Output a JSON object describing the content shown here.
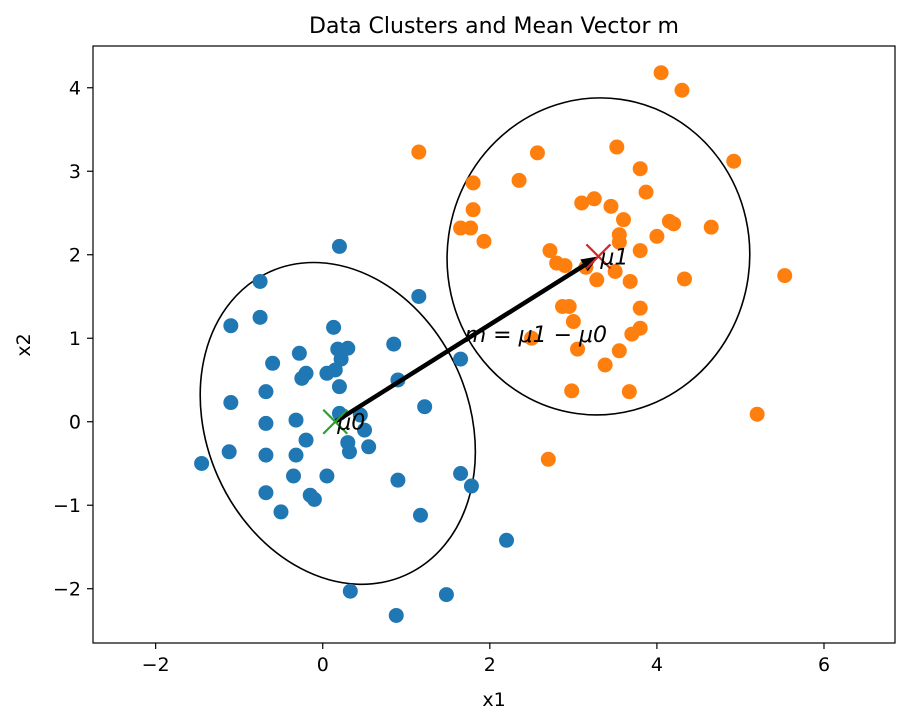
{
  "chart_data": {
    "type": "scatter",
    "title": "Data Clusters and Mean Vector m",
    "xlabel": "x1",
    "ylabel": "x2",
    "xlim": [
      -2.75,
      6.85
    ],
    "ylim": [
      -2.65,
      4.5
    ],
    "xticks": [
      -2,
      0,
      2,
      4,
      6
    ],
    "yticks": [
      -2,
      -1,
      0,
      1,
      2,
      3,
      4
    ],
    "xtick_labels": [
      "−2",
      "0",
      "2",
      "4",
      "6"
    ],
    "ytick_labels": [
      "−2",
      "−1",
      "0",
      "1",
      "2",
      "3",
      "4"
    ],
    "grid": false,
    "series": [
      {
        "color": "#1f77b4",
        "points": [
          [
            0.2,
            2.1
          ],
          [
            1.15,
            1.5
          ],
          [
            -0.75,
            1.68
          ],
          [
            -0.75,
            1.25
          ],
          [
            -1.1,
            1.15
          ],
          [
            0.13,
            1.13
          ],
          [
            0.18,
            0.87
          ],
          [
            0.3,
            0.88
          ],
          [
            0.85,
            0.93
          ],
          [
            0.22,
            0.75
          ],
          [
            -0.6,
            0.7
          ],
          [
            -0.28,
            0.82
          ],
          [
            -0.2,
            0.58
          ],
          [
            -0.25,
            0.52
          ],
          [
            0.05,
            0.58
          ],
          [
            0.15,
            0.62
          ],
          [
            0.9,
            0.5
          ],
          [
            1.65,
            0.75
          ],
          [
            0.2,
            0.42
          ],
          [
            -0.68,
            0.36
          ],
          [
            -1.1,
            0.23
          ],
          [
            1.22,
            0.18
          ],
          [
            0.2,
            0.1
          ],
          [
            0.45,
            0.08
          ],
          [
            -0.32,
            0.02
          ],
          [
            -0.68,
            -0.02
          ],
          [
            0.5,
            -0.1
          ],
          [
            -0.2,
            -0.22
          ],
          [
            0.3,
            -0.25
          ],
          [
            0.55,
            -0.3
          ],
          [
            0.32,
            -0.36
          ],
          [
            -1.12,
            -0.36
          ],
          [
            -0.32,
            -0.4
          ],
          [
            -0.68,
            -0.4
          ],
          [
            -1.45,
            -0.5
          ],
          [
            -0.35,
            -0.65
          ],
          [
            0.05,
            -0.65
          ],
          [
            1.65,
            -0.62
          ],
          [
            0.9,
            -0.7
          ],
          [
            1.78,
            -0.77
          ],
          [
            -0.68,
            -0.85
          ],
          [
            -0.15,
            -0.88
          ],
          [
            -0.1,
            -0.93
          ],
          [
            -0.5,
            -1.08
          ],
          [
            1.17,
            -1.12
          ],
          [
            2.2,
            -1.42
          ],
          [
            0.33,
            -2.03
          ],
          [
            1.48,
            -2.07
          ],
          [
            0.88,
            -2.32
          ]
        ]
      },
      {
        "color": "#ff7f0e",
        "points": [
          [
            4.05,
            4.18
          ],
          [
            4.3,
            3.97
          ],
          [
            1.15,
            3.23
          ],
          [
            2.57,
            3.22
          ],
          [
            3.52,
            3.29
          ],
          [
            4.92,
            3.12
          ],
          [
            3.8,
            3.03
          ],
          [
            1.8,
            2.86
          ],
          [
            2.35,
            2.89
          ],
          [
            3.87,
            2.75
          ],
          [
            3.25,
            2.67
          ],
          [
            3.1,
            2.62
          ],
          [
            3.45,
            2.58
          ],
          [
            1.8,
            2.54
          ],
          [
            3.6,
            2.42
          ],
          [
            4.15,
            2.4
          ],
          [
            4.2,
            2.37
          ],
          [
            1.65,
            2.32
          ],
          [
            1.77,
            2.32
          ],
          [
            4.65,
            2.33
          ],
          [
            3.55,
            2.24
          ],
          [
            4.0,
            2.22
          ],
          [
            1.93,
            2.16
          ],
          [
            3.55,
            2.15
          ],
          [
            2.72,
            2.05
          ],
          [
            3.8,
            2.05
          ],
          [
            2.8,
            1.9
          ],
          [
            2.9,
            1.87
          ],
          [
            3.15,
            1.85
          ],
          [
            3.5,
            1.8
          ],
          [
            5.53,
            1.75
          ],
          [
            3.28,
            1.7
          ],
          [
            3.68,
            1.68
          ],
          [
            4.33,
            1.71
          ],
          [
            2.87,
            1.38
          ],
          [
            2.95,
            1.38
          ],
          [
            3.8,
            1.36
          ],
          [
            3.0,
            1.2
          ],
          [
            3.8,
            1.12
          ],
          [
            3.7,
            1.05
          ],
          [
            2.5,
            1.0
          ],
          [
            3.05,
            0.87
          ],
          [
            3.55,
            0.85
          ],
          [
            3.38,
            0.68
          ],
          [
            2.98,
            0.37
          ],
          [
            3.67,
            0.36
          ],
          [
            5.2,
            0.09
          ],
          [
            2.7,
            -0.45
          ]
        ]
      }
    ],
    "ellipses": [
      {
        "cx": 0.18,
        "cy": -0.02,
        "rx": 1.57,
        "ry": 1.99,
        "angle": 24,
        "color": "#000000"
      },
      {
        "cx": 3.3,
        "cy": 1.98,
        "rx": 1.81,
        "ry": 1.9,
        "angle": -8,
        "color": "#000000"
      }
    ],
    "means": [
      {
        "label": "μ0",
        "x": 0.15,
        "y": 0.0,
        "color": "#2ca02c"
      },
      {
        "label": "μ1",
        "x": 3.3,
        "y": 1.98,
        "color": "#d62728"
      }
    ],
    "arrow": {
      "from": [
        0.15,
        0.0
      ],
      "to": [
        3.3,
        1.98
      ],
      "color": "#000000"
    },
    "annotations": [
      {
        "text": "m = μ1 − μ0",
        "x": 1.7,
        "y": 1.05
      }
    ]
  }
}
